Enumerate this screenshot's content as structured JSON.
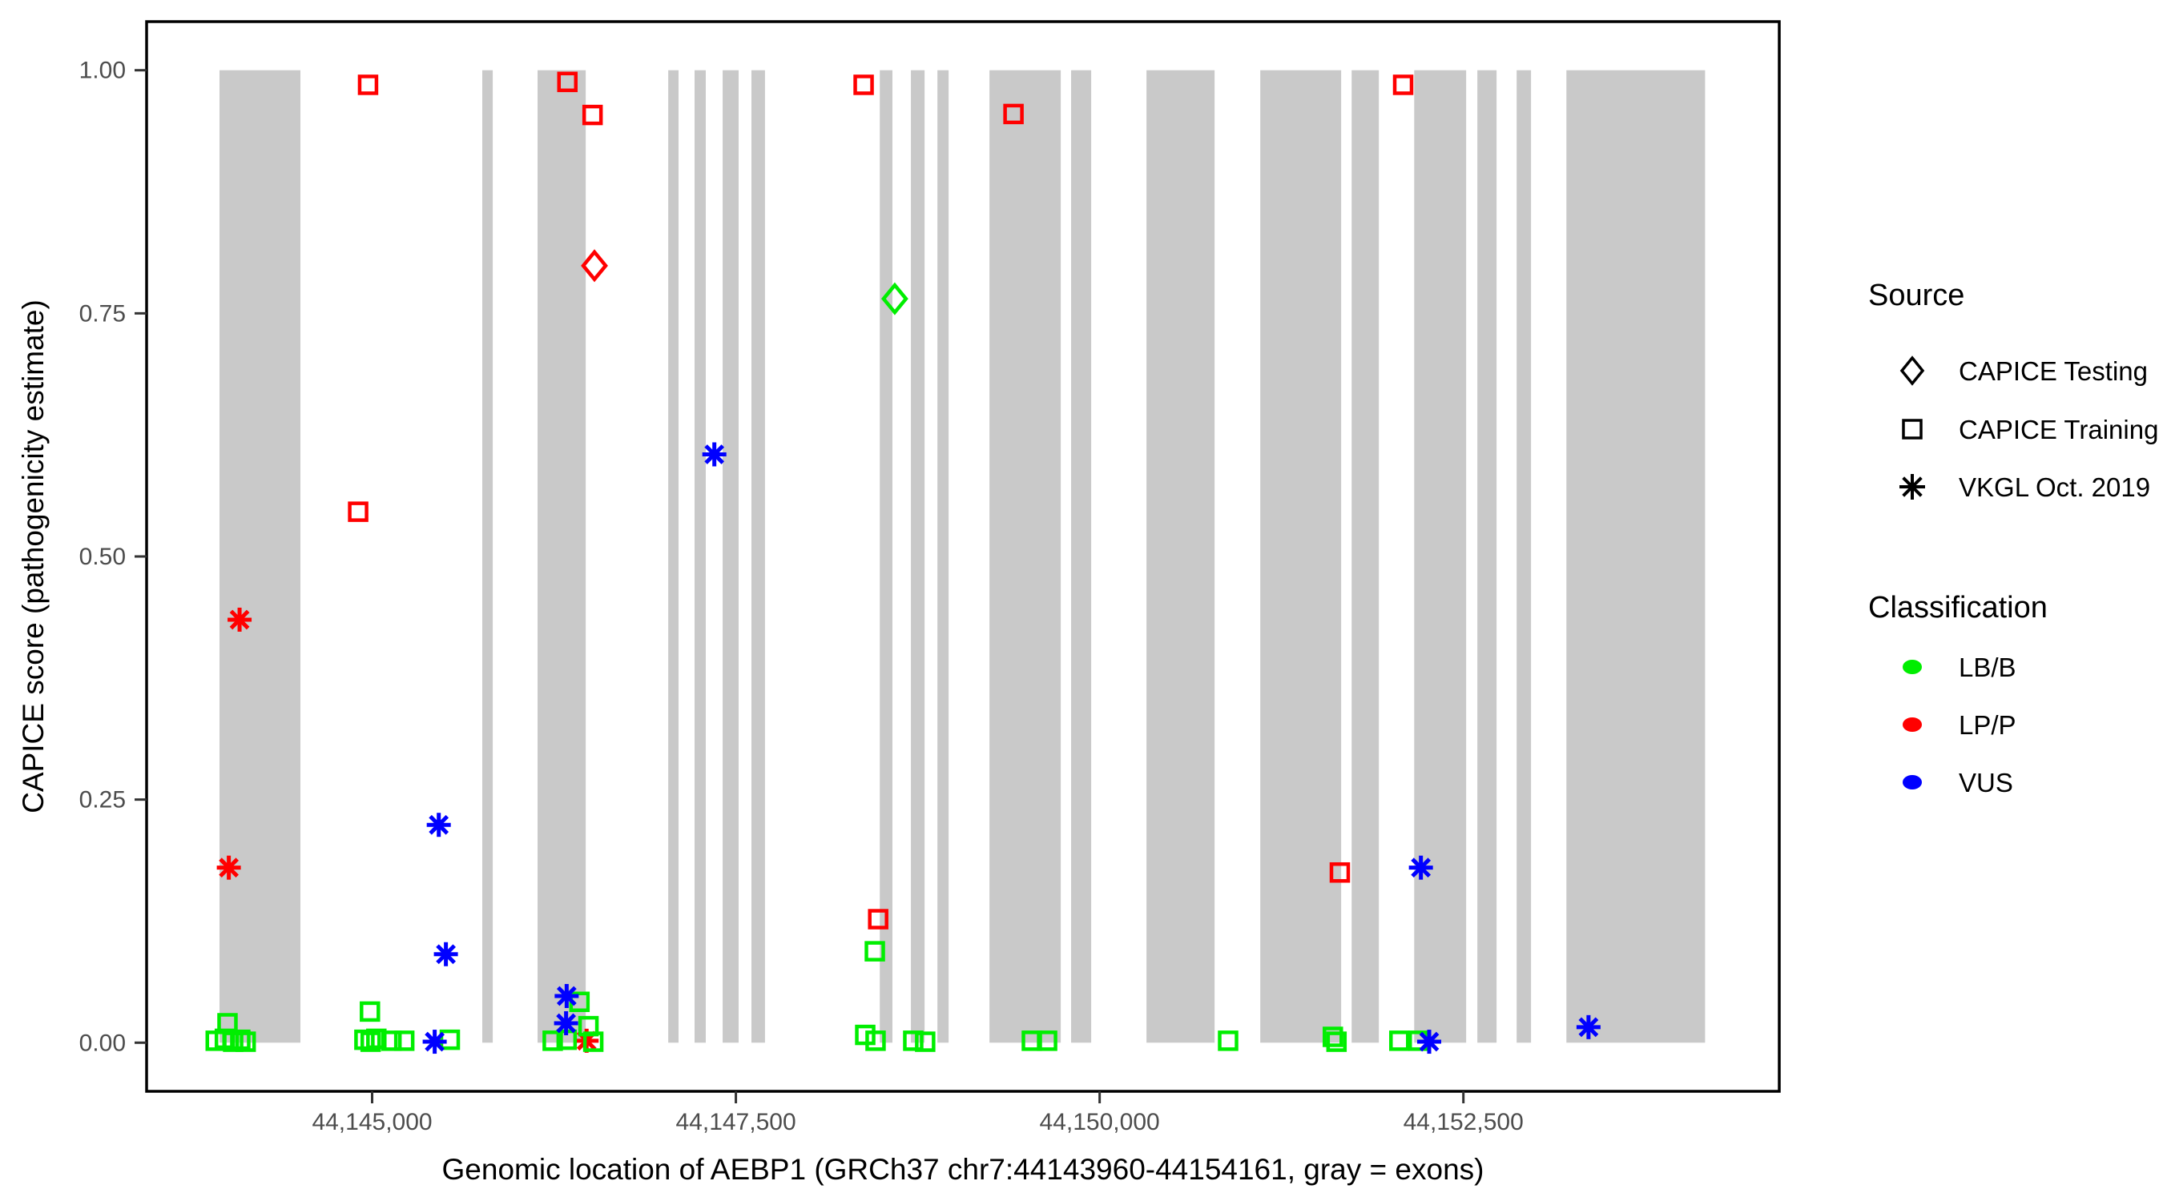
{
  "chart_data": {
    "type": "scatter",
    "title": "",
    "xlabel": "Genomic location of AEBP1 (GRCh37 chr7:44143960-44154161, gray = exons)",
    "ylabel": "CAPICE score (pathogenicity estimate)",
    "gene": "AEBP1",
    "genome_build": "GRCh37",
    "gene_region": "chr7:44143960-44154161",
    "x_range": [
      44143450,
      44154671
    ],
    "y_range": [
      -0.05,
      1.05
    ],
    "x_ticks": [
      {
        "value": 44145000,
        "label": "44,145,000"
      },
      {
        "value": 44147500,
        "label": "44,147,500"
      },
      {
        "value": 44150000,
        "label": "44,150,000"
      },
      {
        "value": 44152500,
        "label": "44,152,500"
      }
    ],
    "y_ticks": [
      {
        "value": 0.0,
        "label": "0.00"
      },
      {
        "value": 0.25,
        "label": "0.25"
      },
      {
        "value": 0.5,
        "label": "0.50"
      },
      {
        "value": 0.75,
        "label": "0.75"
      },
      {
        "value": 1.0,
        "label": "1.00"
      }
    ],
    "grid": false,
    "exon_color": "#C9C9C9",
    "exons": [
      [
        44143951,
        44144507
      ],
      [
        44145757,
        44145829
      ],
      [
        44146137,
        44146468
      ],
      [
        44147035,
        44147106
      ],
      [
        44147216,
        44147293
      ],
      [
        44147409,
        44147519
      ],
      [
        44147607,
        44147700
      ],
      [
        44148489,
        44148576
      ],
      [
        44148703,
        44148797
      ],
      [
        44148885,
        44148962
      ],
      [
        44149243,
        44149733
      ],
      [
        44149804,
        44149942
      ],
      [
        44150322,
        44150790
      ],
      [
        44151104,
        44151660
      ],
      [
        44151732,
        44151919
      ],
      [
        44152162,
        44152519
      ],
      [
        44152596,
        44152728
      ],
      [
        44152866,
        44152965
      ],
      [
        44153208,
        44154161
      ]
    ],
    "classification_colors": {
      "LB/B": "#00EE00",
      "LP/P": "#FF0000",
      "VUS": "#0000FF"
    },
    "source_shapes": {
      "CAPICE Testing": "diamond",
      "CAPICE Training": "square",
      "VKGL Oct. 2019": "asterisk"
    },
    "points": [
      {
        "bp": 44144015,
        "score": 0.18,
        "source": "VKGL Oct. 2019",
        "classification": "LP/P"
      },
      {
        "bp": 44144089,
        "score": 0.435,
        "source": "VKGL Oct. 2019",
        "classification": "LP/P"
      },
      {
        "bp": 44144904,
        "score": 0.546,
        "source": "CAPICE Training",
        "classification": "LP/P"
      },
      {
        "bp": 44144972,
        "score": 0.985,
        "source": "CAPICE Training",
        "classification": "LP/P"
      },
      {
        "bp": 44146342,
        "score": 0.988,
        "source": "CAPICE Training",
        "classification": "LP/P"
      },
      {
        "bp": 44146474,
        "score": 0.002,
        "source": "VKGL Oct. 2019",
        "classification": "LP/P"
      },
      {
        "bp": 44146515,
        "score": 0.954,
        "source": "CAPICE Training",
        "classification": "LP/P"
      },
      {
        "bp": 44146528,
        "score": 0.799,
        "source": "CAPICE Testing",
        "classification": "LP/P"
      },
      {
        "bp": 44148378,
        "score": 0.985,
        "source": "CAPICE Training",
        "classification": "LP/P"
      },
      {
        "bp": 44148478,
        "score": 0.127,
        "source": "CAPICE Training",
        "classification": "LP/P"
      },
      {
        "bp": 44149408,
        "score": 0.955,
        "source": "CAPICE Training",
        "classification": "LP/P"
      },
      {
        "bp": 44151651,
        "score": 0.175,
        "source": "CAPICE Training",
        "classification": "LP/P"
      },
      {
        "bp": 44152086,
        "score": 0.985,
        "source": "CAPICE Training",
        "classification": "LP/P"
      },
      {
        "bp": 44143925,
        "score": 0.002,
        "source": "CAPICE Training",
        "classification": "LB/B"
      },
      {
        "bp": 44143988,
        "score": 0.004,
        "source": "CAPICE Training",
        "classification": "LB/B"
      },
      {
        "bp": 44144006,
        "score": 0.02,
        "source": "CAPICE Training",
        "classification": "LB/B"
      },
      {
        "bp": 44144045,
        "score": 0.001,
        "source": "CAPICE Training",
        "classification": "LB/B"
      },
      {
        "bp": 44144094,
        "score": 0.003,
        "source": "CAPICE Training",
        "classification": "LB/B"
      },
      {
        "bp": 44144131,
        "score": 0.001,
        "source": "CAPICE Training",
        "classification": "LB/B"
      },
      {
        "bp": 44144947,
        "score": 0.003,
        "source": "CAPICE Training",
        "classification": "LB/B"
      },
      {
        "bp": 44144985,
        "score": 0.032,
        "source": "CAPICE Training",
        "classification": "LB/B"
      },
      {
        "bp": 44144990,
        "score": 0.001,
        "source": "CAPICE Training",
        "classification": "LB/B"
      },
      {
        "bp": 44145029,
        "score": 0.004,
        "source": "CAPICE Training",
        "classification": "LB/B"
      },
      {
        "bp": 44145133,
        "score": 0.002,
        "source": "CAPICE Training",
        "classification": "LB/B"
      },
      {
        "bp": 44145221,
        "score": 0.002,
        "source": "CAPICE Training",
        "classification": "LB/B"
      },
      {
        "bp": 44145534,
        "score": 0.003,
        "source": "CAPICE Training",
        "classification": "LB/B"
      },
      {
        "bp": 44146241,
        "score": 0.002,
        "source": "CAPICE Training",
        "classification": "LB/B"
      },
      {
        "bp": 44146337,
        "score": 0.003,
        "source": "CAPICE Training",
        "classification": "LB/B"
      },
      {
        "bp": 44146425,
        "score": 0.042,
        "source": "CAPICE Training",
        "classification": "LB/B"
      },
      {
        "bp": 44146487,
        "score": 0.017,
        "source": "CAPICE Training",
        "classification": "LB/B"
      },
      {
        "bp": 44146520,
        "score": 0.001,
        "source": "CAPICE Training",
        "classification": "LB/B"
      },
      {
        "bp": 44148389,
        "score": 0.008,
        "source": "CAPICE Training",
        "classification": "LB/B"
      },
      {
        "bp": 44148455,
        "score": 0.094,
        "source": "CAPICE Training",
        "classification": "LB/B"
      },
      {
        "bp": 44148460,
        "score": 0.002,
        "source": "CAPICE Training",
        "classification": "LB/B"
      },
      {
        "bp": 44148592,
        "score": 0.765,
        "source": "CAPICE Testing",
        "classification": "LB/B"
      },
      {
        "bp": 44148719,
        "score": 0.002,
        "source": "CAPICE Training",
        "classification": "LB/B"
      },
      {
        "bp": 44148801,
        "score": 0.001,
        "source": "CAPICE Training",
        "classification": "LB/B"
      },
      {
        "bp": 44149534,
        "score": 0.002,
        "source": "CAPICE Training",
        "classification": "LB/B"
      },
      {
        "bp": 44149639,
        "score": 0.002,
        "source": "CAPICE Training",
        "classification": "LB/B"
      },
      {
        "bp": 44150883,
        "score": 0.002,
        "source": "CAPICE Training",
        "classification": "LB/B"
      },
      {
        "bp": 44151603,
        "score": 0.006,
        "source": "CAPICE Training",
        "classification": "LB/B"
      },
      {
        "bp": 44151628,
        "score": 0.001,
        "source": "CAPICE Training",
        "classification": "LB/B"
      },
      {
        "bp": 44152060,
        "score": 0.002,
        "source": "CAPICE Training",
        "classification": "LB/B"
      },
      {
        "bp": 44152192,
        "score": 0.002,
        "source": "CAPICE Training",
        "classification": "LB/B"
      },
      {
        "bp": 44145430,
        "score": 0.001,
        "source": "VKGL Oct. 2019",
        "classification": "VUS"
      },
      {
        "bp": 44145458,
        "score": 0.224,
        "source": "VKGL Oct. 2019",
        "classification": "VUS"
      },
      {
        "bp": 44145507,
        "score": 0.091,
        "source": "VKGL Oct. 2019",
        "classification": "VUS"
      },
      {
        "bp": 44146333,
        "score": 0.02,
        "source": "VKGL Oct. 2019",
        "classification": "VUS"
      },
      {
        "bp": 44146337,
        "score": 0.048,
        "source": "VKGL Oct. 2019",
        "classification": "VUS"
      },
      {
        "bp": 44147352,
        "score": 0.605,
        "source": "VKGL Oct. 2019",
        "classification": "VUS"
      },
      {
        "bp": 44152208,
        "score": 0.18,
        "source": "VKGL Oct. 2019",
        "classification": "VUS"
      },
      {
        "bp": 44152265,
        "score": 0.001,
        "source": "VKGL Oct. 2019",
        "classification": "VUS"
      },
      {
        "bp": 44153360,
        "score": 0.016,
        "source": "VKGL Oct. 2019",
        "classification": "VUS"
      }
    ]
  },
  "legend": {
    "source": {
      "title": "Source",
      "items": [
        {
          "label": "CAPICE Testing",
          "shape": "diamond"
        },
        {
          "label": "CAPICE Training",
          "shape": "square"
        },
        {
          "label": "VKGL Oct. 2019",
          "shape": "asterisk"
        }
      ]
    },
    "classification": {
      "title": "Classification",
      "items": [
        {
          "label": "LB/B",
          "color": "#00EE00"
        },
        {
          "label": "LP/P",
          "color": "#FF0000"
        },
        {
          "label": "VUS",
          "color": "#0000FF"
        }
      ]
    }
  },
  "styles": {
    "tick_label_color": "#4D4D4D",
    "axis_color": "#000000",
    "background": "#FFFFFF"
  }
}
